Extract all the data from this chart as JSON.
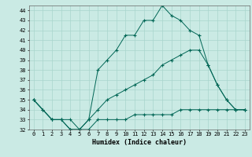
{
  "xlabel": "Humidex (Indice chaleur)",
  "background_color": "#caeae4",
  "grid_color": "#a8d5cc",
  "line_color": "#006655",
  "xlim": [
    -0.5,
    23.5
  ],
  "ylim": [
    32,
    44.5
  ],
  "yticks": [
    32,
    33,
    34,
    35,
    36,
    37,
    38,
    39,
    40,
    41,
    42,
    43,
    44
  ],
  "xticks": [
    0,
    1,
    2,
    3,
    4,
    5,
    6,
    7,
    8,
    9,
    10,
    11,
    12,
    13,
    14,
    15,
    16,
    17,
    18,
    19,
    20,
    21,
    22,
    23
  ],
  "line1_x": [
    0,
    1,
    2,
    3,
    4,
    5,
    6,
    7,
    8,
    9,
    10,
    11,
    12,
    13,
    14,
    15,
    16,
    17,
    18,
    19,
    20,
    21,
    22,
    23
  ],
  "line1_y": [
    35,
    34,
    33,
    33,
    32,
    32,
    33,
    38,
    39,
    40,
    41.5,
    41.5,
    43,
    43,
    44.5,
    43.5,
    43,
    42,
    41.5,
    38.5,
    36.5,
    35,
    34,
    34
  ],
  "line2_x": [
    0,
    1,
    2,
    3,
    4,
    5,
    6,
    7,
    8,
    9,
    10,
    11,
    12,
    13,
    14,
    15,
    16,
    17,
    18,
    19,
    20,
    21,
    22,
    23
  ],
  "line2_y": [
    35,
    34,
    33,
    33,
    32,
    32,
    33,
    34,
    35,
    35.5,
    36,
    36.5,
    37,
    37.5,
    38.5,
    39,
    39.5,
    40,
    40,
    38.5,
    36.5,
    35,
    34,
    34
  ],
  "line3_x": [
    0,
    2,
    3,
    4,
    5,
    6,
    7,
    8,
    9,
    10,
    11,
    12,
    13,
    14,
    15,
    16,
    17,
    18,
    19,
    20,
    21,
    22,
    23
  ],
  "line3_y": [
    35,
    33,
    33,
    33,
    32,
    32,
    33,
    33,
    33,
    33,
    33.5,
    33.5,
    33.5,
    33.5,
    33.5,
    34,
    34,
    34,
    34,
    34,
    34,
    34,
    34
  ]
}
